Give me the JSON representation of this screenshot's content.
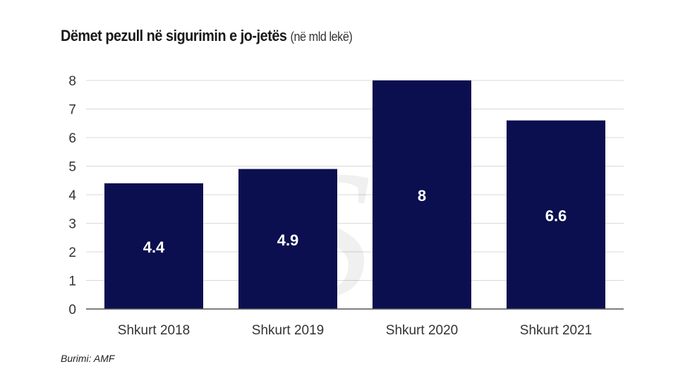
{
  "chart_data": {
    "type": "bar",
    "title": "Dëmet pezull në sigurimin e jo-jetës",
    "subtitle": "(në mld lekë)",
    "categories": [
      "Shkurt 2018",
      "Shkurt 2019",
      "Shkurt 2020",
      "Shkurt 2021"
    ],
    "values": [
      4.4,
      4.9,
      8,
      6.6
    ],
    "value_labels": [
      "4.4",
      "4.9",
      "8",
      "6.6"
    ],
    "ylim": [
      0,
      8
    ],
    "yticks": [
      0,
      1,
      2,
      3,
      4,
      5,
      6,
      7,
      8
    ],
    "xlabel": "",
    "ylabel": "",
    "grid": true,
    "bar_color": "#0b0f4f",
    "source": "Burimi: AMF"
  }
}
